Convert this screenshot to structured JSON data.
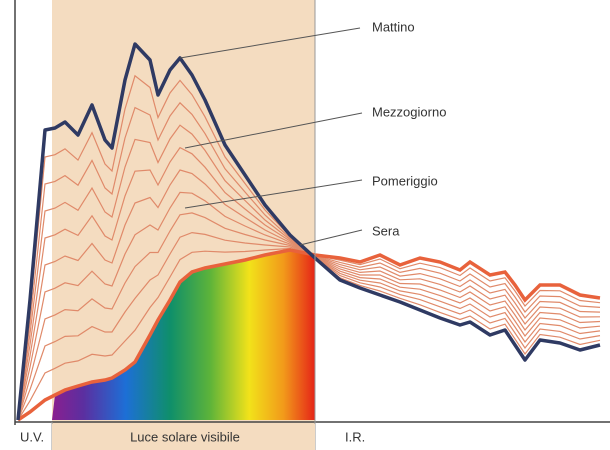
{
  "curve_labels": {
    "morning": "Mattino",
    "noon": "Mezzogiorno",
    "afternoon": "Pomeriggio",
    "evening": "Sera"
  },
  "bands": {
    "uv": "U.V.",
    "visible": "Luce solare visibile",
    "ir": "I.R."
  }
}
